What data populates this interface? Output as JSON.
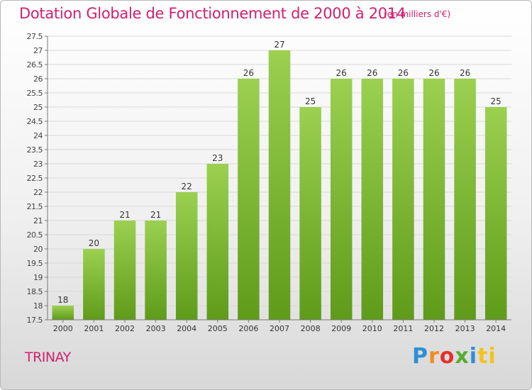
{
  "title": "Dotation Globale de Fonctionnement de 2000 à 2014",
  "subtitle": "(en milliers d'€)",
  "commune": "TRINAY",
  "brand": {
    "letters": [
      "P",
      "r",
      "o",
      "x",
      "i",
      "ti"
    ]
  },
  "colors": {
    "accent": "#d0206e",
    "bar_top": "#9bd050",
    "bar_bottom": "#5f9b1a",
    "grid": "#d9d9d9"
  },
  "chart_data": {
    "type": "bar",
    "title": "Dotation Globale de Fonctionnement de 2000 à 2014",
    "subtitle": "(en milliers d'€)",
    "xlabel": "",
    "ylabel": "",
    "categories": [
      "2000",
      "2001",
      "2002",
      "2003",
      "2004",
      "2005",
      "2006",
      "2007",
      "2008",
      "2009",
      "2010",
      "2011",
      "2012",
      "2013",
      "2014"
    ],
    "values": [
      18,
      20,
      21,
      21,
      22,
      23,
      26,
      27,
      25,
      26,
      26,
      26,
      26,
      26,
      25
    ],
    "ylim": [
      17.5,
      27.5
    ],
    "yticks": [
      "17.5",
      "18",
      "18.5",
      "19",
      "19.5",
      "20",
      "20.5",
      "21",
      "21.5",
      "22",
      "22.5",
      "23",
      "23.5",
      "24",
      "24.5",
      "25",
      "25.5",
      "26",
      "26.5",
      "27",
      "27.5"
    ],
    "grid": true,
    "legend": "none"
  }
}
